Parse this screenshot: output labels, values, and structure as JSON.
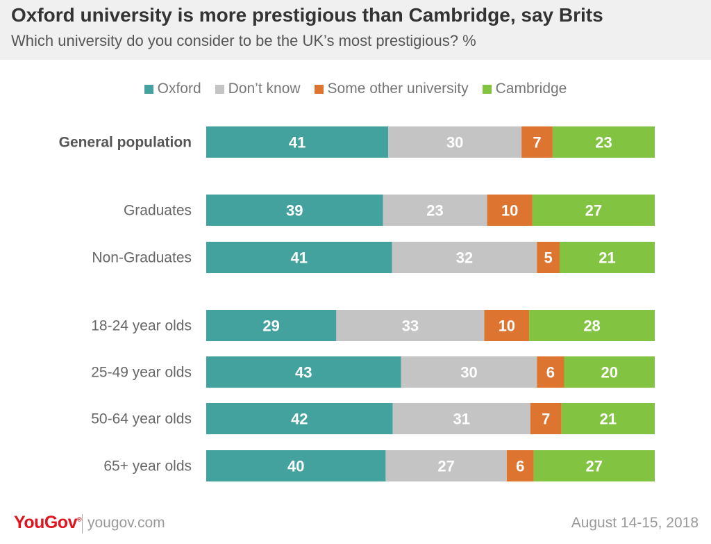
{
  "header": {
    "title": "Oxford university is more prestigious than Cambridge, say Brits",
    "subtitle": "Which university do you consider to be the UK’s most prestigious? %"
  },
  "chart_data": {
    "type": "bar",
    "orientation": "horizontal",
    "stacked": true,
    "title": "Oxford university is more prestigious than Cambridge, say Brits",
    "subtitle": "Which university do you consider to be the UK’s most prestigious? %",
    "legend_position": "top",
    "categories": [
      "General population",
      "Graduates",
      "Non-Graduates",
      "18-24 year olds",
      "25-49 year olds",
      "50-64 year olds",
      "65+ year olds"
    ],
    "bold_categories": [
      "General population"
    ],
    "series": [
      {
        "name": "Oxford",
        "color": "#43a19e",
        "values": [
          41,
          39,
          41,
          29,
          43,
          42,
          40
        ]
      },
      {
        "name": "Don’t know",
        "color": "#c4c4c4",
        "values": [
          30,
          23,
          32,
          33,
          30,
          31,
          27
        ]
      },
      {
        "name": "Some other university",
        "color": "#dd7530",
        "values": [
          7,
          10,
          5,
          10,
          6,
          7,
          6
        ]
      },
      {
        "name": "Cambridge",
        "color": "#82c341",
        "values": [
          23,
          27,
          21,
          28,
          20,
          21,
          27
        ]
      }
    ]
  },
  "footer": {
    "brand": "YouGov",
    "brand_mark": "®",
    "site": "yougov.com",
    "date": "August 14-15, 2018"
  }
}
